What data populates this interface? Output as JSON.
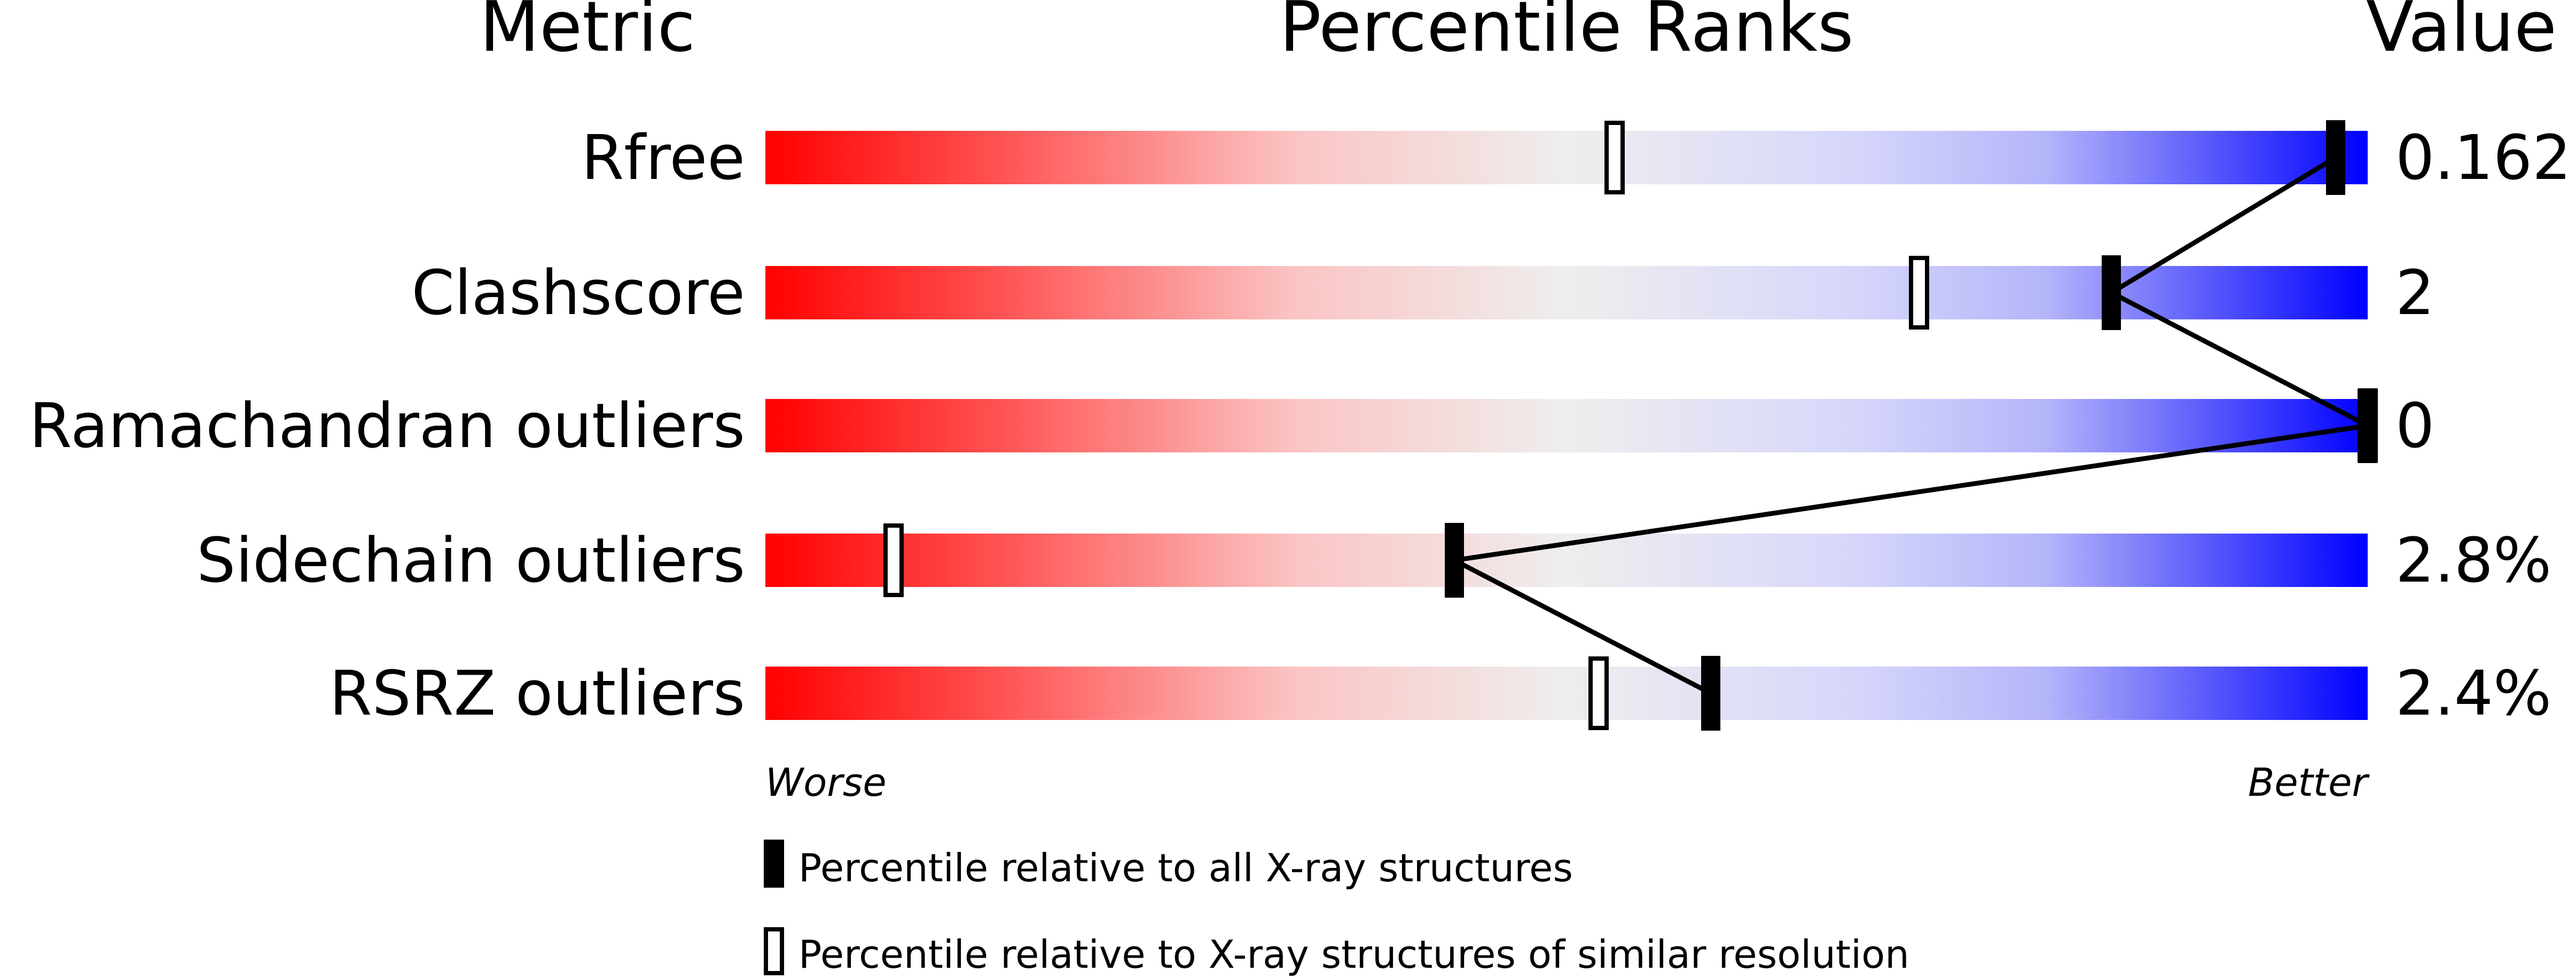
{
  "chart_data": {
    "type": "percentile-bar",
    "headers": {
      "metric": "Metric",
      "ranks": "Percentile Ranks",
      "value": "Value"
    },
    "xlim": [
      0,
      100
    ],
    "axis_left": "Worse",
    "axis_right": "Better",
    "colors": {
      "worse": "#ff0000",
      "mid": "#f0f0f0",
      "better": "#0000ff",
      "marker": "#000000"
    },
    "metrics": [
      {
        "name": "Rfree",
        "value": "0.162",
        "percentile_all": 98,
        "percentile_similar": 53
      },
      {
        "name": "Clashscore",
        "value": "2",
        "percentile_all": 84,
        "percentile_similar": 72
      },
      {
        "name": "Ramachandran outliers",
        "value": "0",
        "percentile_all": 100,
        "percentile_similar": 100
      },
      {
        "name": "Sidechain outliers",
        "value": "2.8%",
        "percentile_all": 43,
        "percentile_similar": 8
      },
      {
        "name": "RSRZ outliers",
        "value": "2.4%",
        "percentile_all": 59,
        "percentile_similar": 52
      }
    ],
    "legend": [
      {
        "marker": "filled",
        "label": "Percentile relative to all X-ray structures"
      },
      {
        "marker": "open",
        "label": "Percentile relative to X-ray structures of similar resolution"
      }
    ]
  }
}
